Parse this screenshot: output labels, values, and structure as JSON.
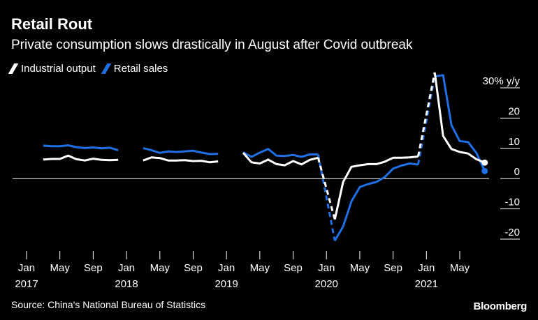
{
  "header": {
    "title": "Retail Rout",
    "subtitle": "Private consumption slows drastically in August after Covid outbreak"
  },
  "legend": [
    {
      "label": "Industrial output",
      "color": "#ffffff"
    },
    {
      "label": "Retail sales",
      "color": "#1f6fe5"
    }
  ],
  "footer": {
    "source": "Source: China's National Bureau of Statistics",
    "brand": "Bloomberg"
  },
  "chart_data": {
    "type": "line",
    "ylabel": "",
    "y_unit_label": "30% y/y",
    "ylim": [
      -23,
      33
    ],
    "yticks": [
      30,
      20,
      10,
      0,
      -10,
      -20
    ],
    "ytick_labels": [
      "30% y/y",
      "20",
      "10",
      "0",
      "-10",
      "-20"
    ],
    "xlim": [
      "2017-01",
      "2021-09"
    ],
    "xticks": [
      {
        "date": "2017-01",
        "line1": "Jan",
        "line2": "2017"
      },
      {
        "date": "2017-05",
        "line1": "May",
        "line2": ""
      },
      {
        "date": "2017-09",
        "line1": "Sep",
        "line2": ""
      },
      {
        "date": "2018-01",
        "line1": "Jan",
        "line2": "2018"
      },
      {
        "date": "2018-05",
        "line1": "May",
        "line2": ""
      },
      {
        "date": "2018-09",
        "line1": "Sep",
        "line2": ""
      },
      {
        "date": "2019-01",
        "line1": "Jan",
        "line2": "2019"
      },
      {
        "date": "2019-05",
        "line1": "May",
        "line2": ""
      },
      {
        "date": "2019-09",
        "line1": "Sep",
        "line2": ""
      },
      {
        "date": "2020-01",
        "line1": "Jan",
        "line2": "2020"
      },
      {
        "date": "2020-05",
        "line1": "May",
        "line2": ""
      },
      {
        "date": "2020-09",
        "line1": "Sep",
        "line2": ""
      },
      {
        "date": "2021-01",
        "line1": "Jan",
        "line2": "2021"
      },
      {
        "date": "2021-05",
        "line1": "May",
        "line2": ""
      }
    ],
    "series": [
      {
        "name": "Industrial output",
        "color": "#ffffff",
        "segments": [
          {
            "style": "solid",
            "points": [
              [
                "2017-03",
                6.3
              ],
              [
                "2017-04",
                6.5
              ],
              [
                "2017-05",
                6.5
              ],
              [
                "2017-06",
                7.6
              ],
              [
                "2017-07",
                6.4
              ],
              [
                "2017-08",
                6.0
              ],
              [
                "2017-09",
                6.6
              ],
              [
                "2017-10",
                6.2
              ],
              [
                "2017-11",
                6.1
              ],
              [
                "2017-12",
                6.2
              ]
            ]
          },
          {
            "style": "solid",
            "points": [
              [
                "2018-03",
                6.0
              ],
              [
                "2018-04",
                7.0
              ],
              [
                "2018-05",
                6.8
              ],
              [
                "2018-06",
                6.0
              ],
              [
                "2018-07",
                6.0
              ],
              [
                "2018-08",
                6.1
              ],
              [
                "2018-09",
                5.8
              ],
              [
                "2018-10",
                5.9
              ],
              [
                "2018-11",
                5.4
              ],
              [
                "2018-12",
                5.7
              ]
            ]
          },
          {
            "style": "solid",
            "points": [
              [
                "2019-03",
                8.5
              ],
              [
                "2019-04",
                5.4
              ],
              [
                "2019-05",
                5.0
              ],
              [
                "2019-06",
                6.3
              ],
              [
                "2019-07",
                4.8
              ],
              [
                "2019-08",
                4.4
              ],
              [
                "2019-09",
                5.8
              ],
              [
                "2019-10",
                4.7
              ],
              [
                "2019-11",
                6.2
              ],
              [
                "2019-12",
                6.9
              ]
            ]
          },
          {
            "style": "dashed",
            "points": [
              [
                "2019-12",
                6.9
              ],
              [
                "2020-02",
                -13.5
              ]
            ]
          },
          {
            "style": "solid",
            "points": [
              [
                "2020-02",
                -13.5
              ],
              [
                "2020-03",
                -1.1
              ],
              [
                "2020-04",
                3.9
              ],
              [
                "2020-05",
                4.4
              ],
              [
                "2020-06",
                4.8
              ],
              [
                "2020-07",
                4.8
              ],
              [
                "2020-08",
                5.6
              ],
              [
                "2020-09",
                6.9
              ],
              [
                "2020-10",
                6.9
              ],
              [
                "2020-11",
                7.0
              ],
              [
                "2020-12",
                7.3
              ]
            ]
          },
          {
            "style": "dashed",
            "points": [
              [
                "2020-12",
                7.3
              ],
              [
                "2021-02",
                35.1
              ]
            ]
          },
          {
            "style": "solid",
            "points": [
              [
                "2021-02",
                35.1
              ],
              [
                "2021-03",
                14.1
              ],
              [
                "2021-04",
                9.8
              ],
              [
                "2021-05",
                8.8
              ],
              [
                "2021-06",
                8.3
              ],
              [
                "2021-07",
                6.4
              ],
              [
                "2021-08",
                5.3
              ]
            ]
          }
        ],
        "end_marker": [
          "2021-08",
          5.3
        ]
      },
      {
        "name": "Retail sales",
        "color": "#1f6fe5",
        "segments": [
          {
            "style": "solid",
            "points": [
              [
                "2017-03",
                10.9
              ],
              [
                "2017-04",
                10.7
              ],
              [
                "2017-05",
                10.7
              ],
              [
                "2017-06",
                11.0
              ],
              [
                "2017-07",
                10.4
              ],
              [
                "2017-08",
                10.1
              ],
              [
                "2017-09",
                10.3
              ],
              [
                "2017-10",
                10.0
              ],
              [
                "2017-11",
                10.2
              ],
              [
                "2017-12",
                9.4
              ]
            ]
          },
          {
            "style": "solid",
            "points": [
              [
                "2018-03",
                10.1
              ],
              [
                "2018-04",
                9.4
              ],
              [
                "2018-05",
                8.5
              ],
              [
                "2018-06",
                9.0
              ],
              [
                "2018-07",
                8.8
              ],
              [
                "2018-08",
                9.0
              ],
              [
                "2018-09",
                9.2
              ],
              [
                "2018-10",
                8.6
              ],
              [
                "2018-11",
                8.1
              ],
              [
                "2018-12",
                8.2
              ]
            ]
          },
          {
            "style": "solid",
            "points": [
              [
                "2019-03",
                8.7
              ],
              [
                "2019-04",
                7.2
              ],
              [
                "2019-05",
                8.6
              ],
              [
                "2019-06",
                9.8
              ],
              [
                "2019-07",
                7.6
              ],
              [
                "2019-08",
                7.5
              ],
              [
                "2019-09",
                7.8
              ],
              [
                "2019-10",
                7.2
              ],
              [
                "2019-11",
                8.0
              ],
              [
                "2019-12",
                8.0
              ]
            ]
          },
          {
            "style": "dashed",
            "points": [
              [
                "2019-12",
                8.0
              ],
              [
                "2020-02",
                -20.5
              ]
            ]
          },
          {
            "style": "solid",
            "points": [
              [
                "2020-02",
                -20.5
              ],
              [
                "2020-03",
                -15.8
              ],
              [
                "2020-04",
                -7.5
              ],
              [
                "2020-05",
                -2.8
              ],
              [
                "2020-06",
                -1.8
              ],
              [
                "2020-07",
                -1.1
              ],
              [
                "2020-08",
                0.5
              ],
              [
                "2020-09",
                3.3
              ],
              [
                "2020-10",
                4.3
              ],
              [
                "2020-11",
                5.0
              ],
              [
                "2020-12",
                4.6
              ]
            ]
          },
          {
            "style": "dashed",
            "points": [
              [
                "2020-12",
                4.6
              ],
              [
                "2021-02",
                33.8
              ]
            ]
          },
          {
            "style": "solid",
            "points": [
              [
                "2021-02",
                33.8
              ],
              [
                "2021-03",
                34.2
              ],
              [
                "2021-04",
                17.7
              ],
              [
                "2021-05",
                12.4
              ],
              [
                "2021-06",
                12.1
              ],
              [
                "2021-07",
                8.5
              ],
              [
                "2021-08",
                2.5
              ]
            ]
          }
        ],
        "end_marker": [
          "2021-08",
          2.5
        ]
      }
    ]
  }
}
